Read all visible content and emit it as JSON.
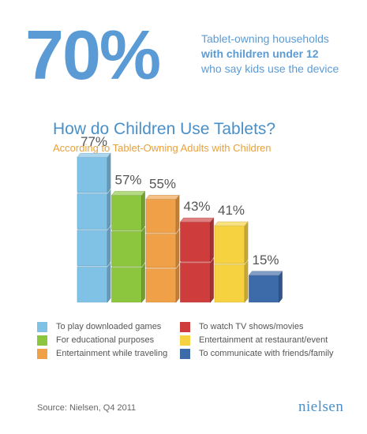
{
  "hero": {
    "percent": "70%",
    "line1": "Tablet-owning households",
    "line2": "with children under 12",
    "line3": "who say kids use the device"
  },
  "colors": {
    "blue": "#7fc2e6",
    "green": "#8cc63f",
    "orange": "#f0a047",
    "red": "#cf3c3c",
    "yellow": "#f7d240",
    "darkblue": "#3d6aa8",
    "accent": "#5b9bd5"
  },
  "chart_data": {
    "type": "bar",
    "title": "How do Children Use Tablets?",
    "subtitle": "According to Tablet-Owning Adults with Children",
    "categories": [
      "To play downloaded games",
      "For educational purposes",
      "Entertainment while traveling",
      "To watch TV shows/movies",
      "Entertainment at restaurant/event",
      "To communicate with friends/family"
    ],
    "values": [
      77,
      57,
      55,
      43,
      41,
      15
    ],
    "value_labels": [
      "77%",
      "57%",
      "55%",
      "43%",
      "41%",
      "15%"
    ],
    "series_colors": [
      "#7fc2e6",
      "#8cc63f",
      "#f0a047",
      "#cf3c3c",
      "#f7d240",
      "#3d6aa8"
    ],
    "ylim": [
      0,
      80
    ],
    "legend_placement": "bottom",
    "grid": false
  },
  "footer": {
    "source": "Source: Nielsen, Q4 2011",
    "logo": "nielsen"
  }
}
